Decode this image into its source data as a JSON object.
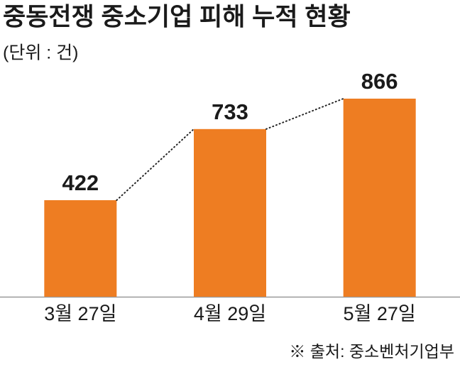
{
  "chart_data": {
    "type": "bar",
    "title": "중동전쟁 중소기업 피해 누적 현황",
    "subtitle": "(단위 : 건)",
    "categories": [
      "3월 27일",
      "4월 29일",
      "5월 27일"
    ],
    "values": [
      422,
      733,
      866
    ],
    "color": "#ee7d22",
    "ylim": [
      0,
      900
    ],
    "source": "※ 출처: 중소벤처기업부"
  }
}
